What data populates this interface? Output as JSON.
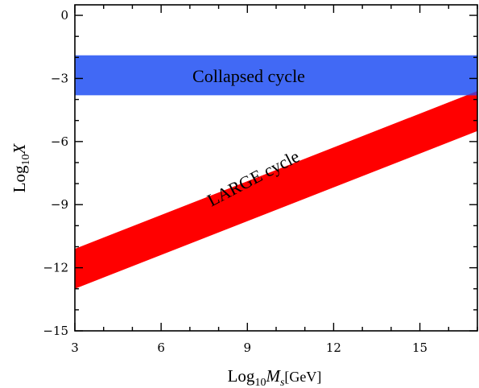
{
  "chart_data": {
    "type": "area",
    "xlabel": {
      "base": "Log",
      "sub": "10",
      "var": "M",
      "varsub": "s",
      "unit": "[GeV]"
    },
    "ylabel": {
      "base": "Log",
      "sub": "10",
      "var": "X"
    },
    "xlim": [
      3,
      17
    ],
    "ylim": [
      -15,
      0.5
    ],
    "xticks": [
      3,
      6,
      9,
      12,
      15
    ],
    "xtick_labels": [
      "3",
      "6",
      "9",
      "12",
      "15"
    ],
    "yticks": [
      0,
      -3,
      -6,
      -9,
      -12,
      -15
    ],
    "ytick_labels": [
      "0",
      "−3",
      "−6",
      "−9",
      "−12",
      "−15"
    ],
    "grid": false,
    "series": [
      {
        "name": "Collapsed cycle",
        "kind": "horizontal-band",
        "color": "#4169f5",
        "y_low": -3.8,
        "y_high": -1.9
      },
      {
        "name": "LARGE cycle",
        "kind": "diagonal-band",
        "color": "#ff0000",
        "x": [
          3,
          17
        ],
        "y_low": [
          -13.0,
          -5.5
        ],
        "y_high": [
          -11.1,
          -3.6
        ]
      }
    ],
    "overlap_color": "#6432b4"
  }
}
